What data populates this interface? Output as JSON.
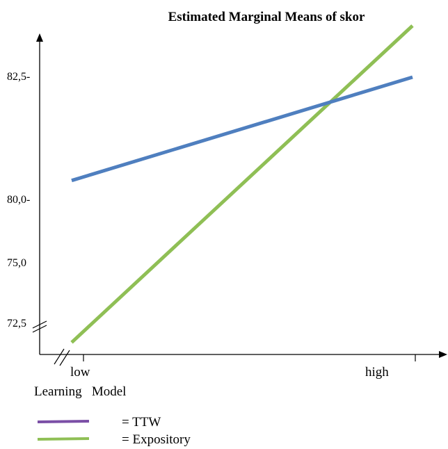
{
  "chart_data": {
    "type": "line",
    "title": "Estimated Marginal Means of skor",
    "xlabel": "Learning   Model",
    "ylabel": "",
    "categories": [
      "low",
      "high"
    ],
    "y_ticks": [
      "82,5-",
      "80,0-",
      "75,0",
      "72,5"
    ],
    "series": [
      {
        "name": "= TTW",
        "legend_color": "#7b4fa6",
        "line_color": "#4f7fbf",
        "values": [
          80.4,
          82.5
        ]
      },
      {
        "name": "= Expository",
        "legend_color": "#8fbf55",
        "line_color": "#8fbf55",
        "values": [
          72.4,
          83.0
        ]
      }
    ],
    "axis_break": true,
    "grid": false,
    "legend_position": "bottom-left"
  }
}
